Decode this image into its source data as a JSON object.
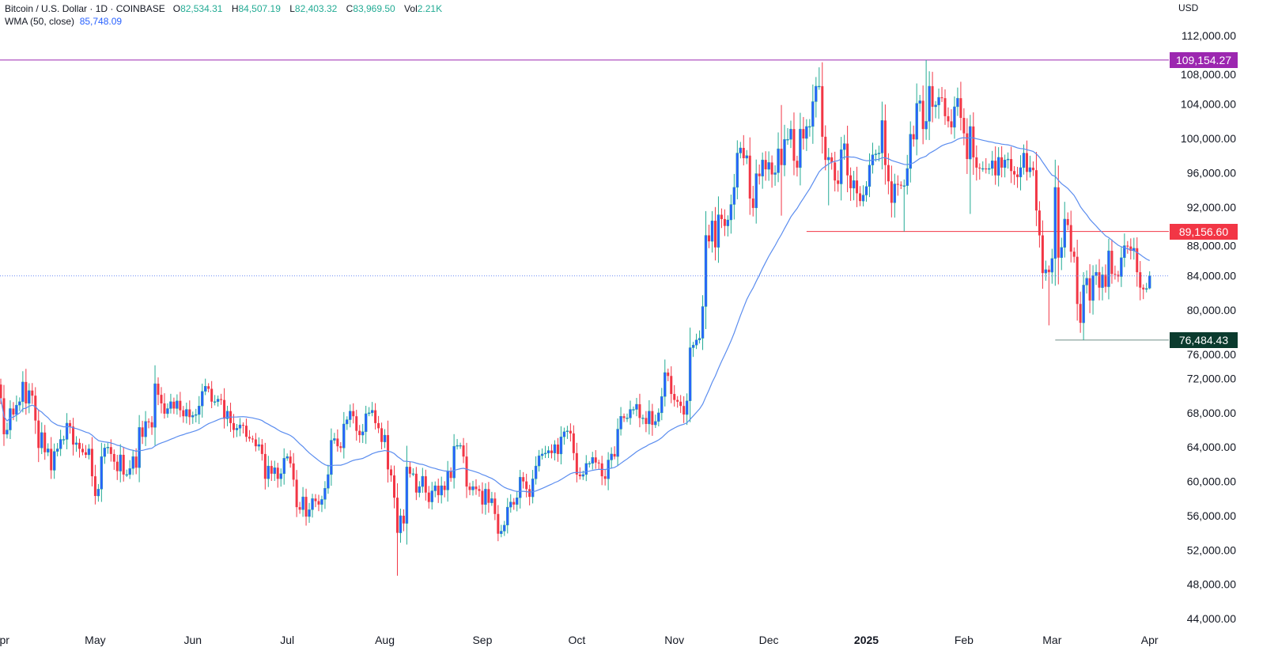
{
  "header": {
    "symbol": "Bitcoin / U.S. Dollar · 1D · COINBASE",
    "open_label": "O",
    "open": "82,534.31",
    "high_label": "H",
    "high": "84,507.19",
    "low_label": "L",
    "low": "82,403.32",
    "close_label": "C",
    "close": "83,969.50",
    "vol_label": "Vol",
    "vol": "2.21K",
    "wma_label": "WMA (50, close)",
    "wma_value": "85,748.09"
  },
  "price_axis": {
    "currency": "USD",
    "ticks": [
      "112,000.00",
      "108,000.00",
      "104,000.00",
      "100,000.00",
      "96,000.00",
      "92,000.00",
      "88,000.00",
      "84,000.00",
      "80,000.00",
      "76,000.00",
      "72,000.00",
      "68,000.00",
      "64,000.00",
      "60,000.00",
      "56,000.00",
      "52,000.00",
      "48,000.00",
      "44,000.00"
    ]
  },
  "time_axis": {
    "ticks": [
      {
        "label": "Apr",
        "date": "2024-04-01",
        "bold": false
      },
      {
        "label": "May",
        "date": "2024-05-01",
        "bold": false
      },
      {
        "label": "Jun",
        "date": "2024-06-01",
        "bold": false
      },
      {
        "label": "Jul",
        "date": "2024-07-01",
        "bold": false
      },
      {
        "label": "Aug",
        "date": "2024-08-01",
        "bold": false
      },
      {
        "label": "Sep",
        "date": "2024-09-01",
        "bold": false
      },
      {
        "label": "Oct",
        "date": "2024-10-01",
        "bold": false
      },
      {
        "label": "Nov",
        "date": "2024-11-01",
        "bold": false
      },
      {
        "label": "Dec",
        "date": "2024-12-01",
        "bold": false
      },
      {
        "label": "2025",
        "date": "2025-01-01",
        "bold": true
      },
      {
        "label": "Feb",
        "date": "2025-02-01",
        "bold": false
      },
      {
        "label": "Mar",
        "date": "2025-03-01",
        "bold": false
      },
      {
        "label": "Apr",
        "date": "2025-04-01",
        "bold": false
      }
    ]
  },
  "levels": [
    {
      "label": "109,154.27",
      "value": 109154.27,
      "color": "#9c27b0",
      "from_date": "2024-04-01"
    },
    {
      "label": "89,156.60",
      "value": 89156.6,
      "color": "#f23645",
      "from_date": "2024-12-13"
    },
    {
      "label": "76,484.43",
      "value": 76484.43,
      "color": "#0b3b2e",
      "line_color": "#6f8f86",
      "from_date": "2025-03-02"
    }
  ],
  "colors": {
    "up_body": "#2962ff",
    "up_wick": "#22ab94",
    "down": "#f23645",
    "wma": "#5b8def",
    "last_price_line": "#6b8cf5"
  },
  "chart_data": {
    "type": "candlestick",
    "title": "Bitcoin / U.S. Dollar · 1D · COINBASE",
    "ylim": [
      42000,
      114000
    ],
    "start_date": "2024-04-01",
    "first_open": 71300,
    "last_candle": {
      "date": "2025-04-01",
      "open": 82534.31,
      "high": 84507.19,
      "low": 82403.32,
      "close": 83969.5
    },
    "wick_extremes": {
      "2024-08-05": {
        "low": 49000
      },
      "2024-11-22": {
        "high": 99600
      },
      "2024-12-05": {
        "high": 103900,
        "low": 91000
      },
      "2024-12-17": {
        "high": 108300
      },
      "2024-12-20": {
        "low": 92200
      },
      "2025-01-13": {
        "low": 89156.6
      },
      "2025-01-20": {
        "high": 109154.27
      },
      "2025-02-03": {
        "low": 91200
      },
      "2025-02-28": {
        "low": 78200
      },
      "2025-03-11": {
        "low": 76484.43
      }
    },
    "closes": [
      69700,
      65500,
      66000,
      68500,
      67800,
      68900,
      69300,
      71600,
      69100,
      70600,
      70000,
      67100,
      63900,
      65700,
      63400,
      63800,
      61300,
      63500,
      63800,
      64900,
      64900,
      66800,
      66400,
      64300,
      64500,
      63800,
      63400,
      63100,
      63800,
      60600,
      58300,
      59100,
      62900,
      63900,
      64000,
      63200,
      62300,
      61200,
      63100,
      60800,
      60800,
      61500,
      62900,
      61600,
      66300,
      65200,
      67000,
      66900,
      66300,
      71400,
      70100,
      69100,
      67900,
      68500,
      69300,
      68500,
      69400,
      68300,
      67600,
      68400,
      67500,
      67700,
      67800,
      68800,
      70500,
      71100,
      70800,
      69300,
      69300,
      69600,
      69500,
      67300,
      68200,
      66800,
      66000,
      66200,
      66600,
      66500,
      65200,
      65000,
      64900,
      64100,
      64300,
      63200,
      60300,
      61800,
      60900,
      61600,
      60300,
      60900,
      62700,
      62900,
      62100,
      60200,
      57000,
      56700,
      58200,
      55900,
      56700,
      58000,
      57700,
      57300,
      57900,
      59200,
      60800,
      64800,
      65000,
      64100,
      63900,
      66700,
      67200,
      68200,
      67600,
      65900,
      65400,
      65800,
      67900,
      68000,
      68300,
      66800,
      66200,
      64600,
      65400,
      61400,
      60700,
      58100,
      54000,
      56000,
      55100,
      61700,
      60900,
      60900,
      58700,
      59400,
      60600,
      58700,
      57600,
      58900,
      59500,
      58400,
      59500,
      59000,
      61200,
      60400,
      64100,
      64200,
      64200,
      62900,
      59400,
      59000,
      59400,
      59100,
      58900,
      57300,
      59100,
      57500,
      58000,
      56200,
      53900,
      54200,
      54900,
      57000,
      57600,
      57300,
      58100,
      60500,
      60000,
      59100,
      58200,
      60300,
      61800,
      63000,
      63200,
      63300,
      63600,
      63300,
      64300,
      63200,
      65200,
      65800,
      65900,
      65600,
      63300,
      60800,
      60600,
      60800,
      62100,
      62100,
      62800,
      62200,
      62100,
      60600,
      60300,
      62500,
      63200,
      62900,
      66100,
      67600,
      67400,
      67400,
      68400,
      68400,
      69000,
      67400,
      67400,
      66700,
      68200,
      66600,
      67000,
      68000,
      69900,
      72700,
      72300,
      70200,
      69500,
      69300,
      68800,
      67800,
      69400,
      75600,
      75900,
      76500,
      76700,
      80400,
      88700,
      88000,
      90400,
      87300,
      91100,
      90600,
      89800,
      90500,
      92300,
      94300,
      98300,
      98900,
      97700,
      98000,
      93000,
      91900,
      95900,
      95600,
      97500,
      96400,
      97200,
      95800,
      96000,
      98800,
      96900,
      99900,
      99900,
      101100,
      97400,
      96600,
      101100,
      100000,
      101400,
      101400,
      104300,
      106100,
      106100,
      100200,
      97500,
      97800,
      97200,
      95100,
      94700,
      98700,
      99400,
      95700,
      94200,
      95100,
      93600,
      92700,
      93400,
      94400,
      96900,
      98100,
      98200,
      98300,
      102100,
      96900,
      95000,
      92500,
      94700,
      94600,
      94500,
      94500,
      96500,
      100500,
      99900,
      104100,
      104400,
      101100,
      102000,
      106100,
      103700,
      103900,
      104800,
      104700,
      102600,
      102000,
      101300,
      103700,
      104700,
      102400,
      100600,
      97600,
      101400,
      97800,
      96600,
      96500,
      96500,
      96400,
      96500,
      97400,
      95700,
      97800,
      96600,
      97500,
      97600,
      96200,
      95800,
      95500,
      96600,
      98300,
      96100,
      96600,
      96300,
      91600,
      88700,
      84300,
      84700,
      84400,
      86000,
      94300,
      86100,
      87300,
      90600,
      89900,
      86800,
      86200,
      80700,
      78500,
      82900,
      83700,
      81100,
      84000,
      84400,
      82600,
      84100,
      82700,
      86900,
      84200,
      84100,
      83900,
      86100,
      87500,
      87400,
      86900,
      87200,
      84400,
      82600,
      82400,
      82500
    ],
    "indicator": {
      "name": "WMA (50, close)",
      "period": 50,
      "last_value": 85748.09
    }
  }
}
